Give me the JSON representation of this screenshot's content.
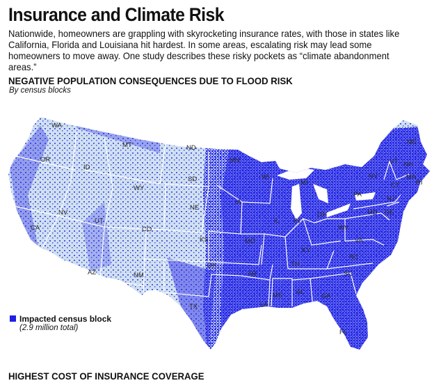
{
  "header": {
    "title": "Insurance and Climate Risk",
    "intro": "Nationwide, homeowners are grappling with skyrocketing insurance rates, with those in states like California, Florida and Louisiana hit hardest. In some areas, escalating risk may lead some homeowners to move away. One study describes these risky pockets as “climate abandonment areas.”"
  },
  "map": {
    "title": "NEGATIVE POPULATION CONSEQUENCES DUE TO FLOOD RISK",
    "subtitle": "By census blocks",
    "colors": {
      "land": "#cfe0ef",
      "impacted": "#1f1fe6",
      "border": "#ffffff"
    },
    "state_labels": [
      "WA",
      "OR",
      "ID",
      "MT",
      "ND",
      "SD",
      "WY",
      "NE",
      "NV",
      "UT",
      "CO",
      "KS",
      "CA",
      "AZ",
      "NM",
      "TX",
      "OK",
      "MN",
      "IA",
      "MO",
      "AR",
      "LA",
      "WI",
      "IL",
      "MI",
      "IN",
      "OH",
      "KY",
      "TN",
      "MS",
      "AL",
      "GA",
      "FL",
      "SC",
      "NC",
      "VA",
      "WV",
      "PA",
      "NY",
      "ME",
      "VT",
      "NH",
      "MA",
      "CT",
      "RI",
      "NJ",
      "DE",
      "MD"
    ],
    "legend": {
      "label": "Impacted census block",
      "total": "(2.9 million total)"
    }
  },
  "footer": {
    "next_section_title": "HIGHEST COST OF INSURANCE COVERAGE"
  }
}
